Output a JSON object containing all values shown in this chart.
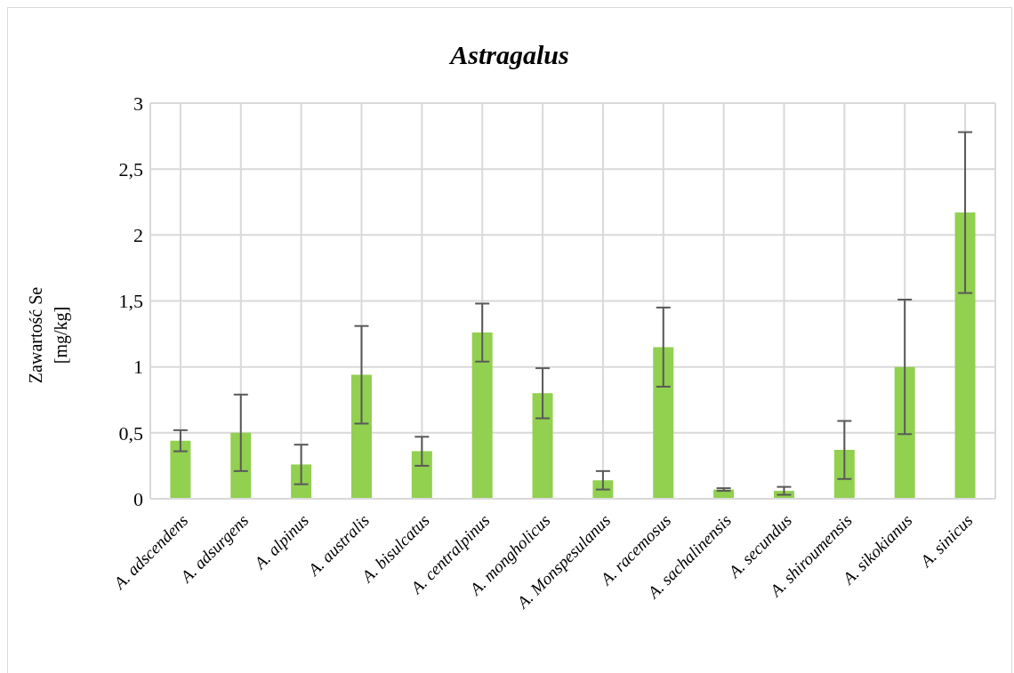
{
  "chart_data": {
    "type": "bar",
    "title": "Astragalus",
    "ylabel": "Zawartość Se [mg/kg]",
    "categories": [
      "A. adscendens",
      "A. adsurgens",
      "A. alpinus",
      "A. australis",
      "A. bisulcatus",
      "A. centralpinus",
      "A. mongholicus",
      "A. Monspesulanus",
      "A. racemosus",
      "A. sachalinensis",
      "A. secundus",
      "A. shiroumensis",
      "A. sikokianus",
      "A. sinicus"
    ],
    "values": [
      0.44,
      0.5,
      0.26,
      0.94,
      0.36,
      1.26,
      0.8,
      0.14,
      1.15,
      0.07,
      0.06,
      0.37,
      1.0,
      2.17
    ],
    "errors": [
      0.08,
      0.29,
      0.15,
      0.37,
      0.11,
      0.22,
      0.19,
      0.07,
      0.3,
      0.01,
      0.03,
      0.22,
      0.51,
      0.61
    ],
    "color": "#92d050",
    "ylim": [
      0,
      3
    ],
    "yticks": [
      0,
      {
        "value": 0.5,
        "label": "0,5"
      },
      1,
      {
        "value": 1.5,
        "label": "1,5"
      },
      2,
      {
        "value": 2.5,
        "label": "2,5"
      },
      3
    ],
    "grid": true
  }
}
